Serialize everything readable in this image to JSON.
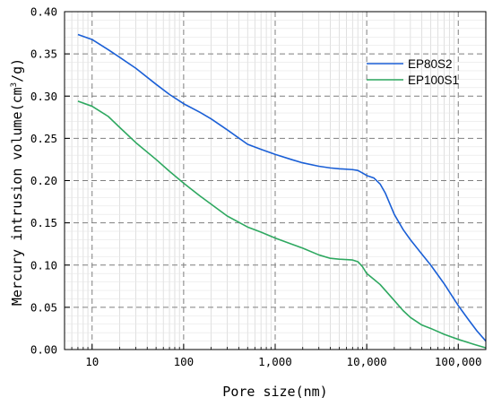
{
  "chart_data": {
    "type": "line",
    "title": "",
    "xlabel": "Pore size(nm)",
    "ylabel": {
      "prefix": "Mercury intrusion volume(cm",
      "sup": "3",
      "suffix": "/g)"
    },
    "xscale": "log",
    "xlim": [
      5,
      200000
    ],
    "ylim": [
      0,
      0.4
    ],
    "grid": true,
    "legend_position": "top-right",
    "x_ticks": [
      {
        "value": 10,
        "label": "10"
      },
      {
        "value": 100,
        "label": "100"
      },
      {
        "value": 1000,
        "label": "1,000"
      },
      {
        "value": 10000,
        "label": "10,000"
      },
      {
        "value": 100000,
        "label": "100,000"
      }
    ],
    "y_ticks": [
      {
        "value": 0.0,
        "label": "0.00"
      },
      {
        "value": 0.05,
        "label": "0.05"
      },
      {
        "value": 0.1,
        "label": "0.10"
      },
      {
        "value": 0.15,
        "label": "0.15"
      },
      {
        "value": 0.2,
        "label": "0.20"
      },
      {
        "value": 0.25,
        "label": "0.25"
      },
      {
        "value": 0.3,
        "label": "0.30"
      },
      {
        "value": 0.35,
        "label": "0.35"
      },
      {
        "value": 0.4,
        "label": "0.40"
      }
    ],
    "series": [
      {
        "name": "EP80S2",
        "color": "#1a5fd6",
        "points": [
          [
            7,
            0.373
          ],
          [
            10,
            0.367
          ],
          [
            15,
            0.355
          ],
          [
            20,
            0.346
          ],
          [
            30,
            0.333
          ],
          [
            50,
            0.314
          ],
          [
            70,
            0.302
          ],
          [
            100,
            0.291
          ],
          [
            150,
            0.281
          ],
          [
            200,
            0.273
          ],
          [
            300,
            0.26
          ],
          [
            500,
            0.243
          ],
          [
            700,
            0.237
          ],
          [
            1000,
            0.231
          ],
          [
            1500,
            0.225
          ],
          [
            2000,
            0.221
          ],
          [
            3000,
            0.217
          ],
          [
            4000,
            0.215
          ],
          [
            5000,
            0.214
          ],
          [
            7000,
            0.213
          ],
          [
            8000,
            0.212
          ],
          [
            9000,
            0.209
          ],
          [
            10000,
            0.206
          ],
          [
            12000,
            0.203
          ],
          [
            14000,
            0.196
          ],
          [
            16000,
            0.185
          ],
          [
            20000,
            0.16
          ],
          [
            25000,
            0.142
          ],
          [
            30000,
            0.13
          ],
          [
            40000,
            0.113
          ],
          [
            50000,
            0.1
          ],
          [
            70000,
            0.078
          ],
          [
            100000,
            0.052
          ],
          [
            130000,
            0.035
          ],
          [
            160000,
            0.022
          ],
          [
            200000,
            0.01
          ]
        ]
      },
      {
        "name": "EP100S1",
        "color": "#2ea860",
        "points": [
          [
            7,
            0.294
          ],
          [
            10,
            0.288
          ],
          [
            15,
            0.276
          ],
          [
            20,
            0.263
          ],
          [
            30,
            0.245
          ],
          [
            50,
            0.225
          ],
          [
            70,
            0.211
          ],
          [
            100,
            0.197
          ],
          [
            150,
            0.182
          ],
          [
            200,
            0.172
          ],
          [
            300,
            0.158
          ],
          [
            500,
            0.145
          ],
          [
            700,
            0.139
          ],
          [
            1000,
            0.132
          ],
          [
            1500,
            0.125
          ],
          [
            2000,
            0.12
          ],
          [
            3000,
            0.112
          ],
          [
            4000,
            0.108
          ],
          [
            5000,
            0.107
          ],
          [
            7000,
            0.106
          ],
          [
            8000,
            0.104
          ],
          [
            9000,
            0.098
          ],
          [
            10000,
            0.09
          ],
          [
            12000,
            0.083
          ],
          [
            14000,
            0.077
          ],
          [
            20000,
            0.058
          ],
          [
            25000,
            0.046
          ],
          [
            30000,
            0.038
          ],
          [
            40000,
            0.029
          ],
          [
            50000,
            0.025
          ],
          [
            70000,
            0.018
          ],
          [
            100000,
            0.012
          ],
          [
            150000,
            0.006
          ],
          [
            200000,
            0.002
          ]
        ]
      }
    ]
  }
}
